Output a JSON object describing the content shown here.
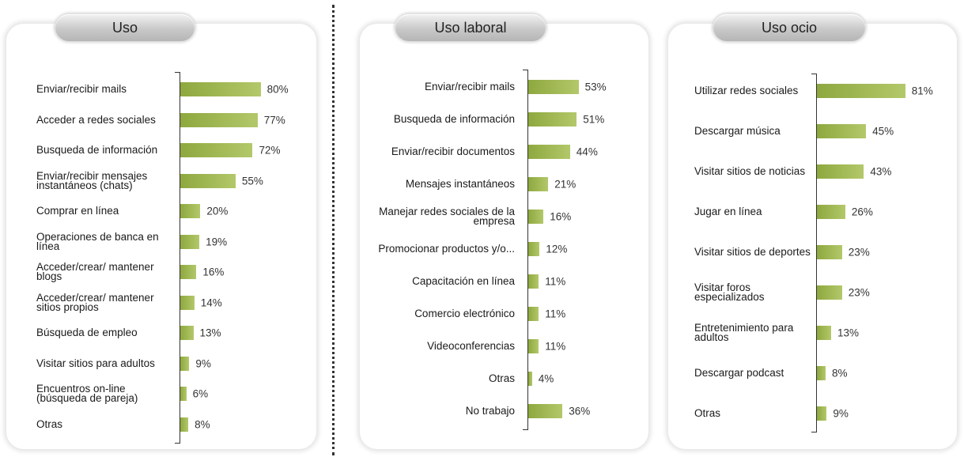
{
  "chart_data": [
    {
      "type": "bar",
      "orientation": "horizontal",
      "title": "Uso",
      "color": "#8ea83f",
      "categories": [
        "Enviar/recibir mails",
        "Acceder a redes sociales",
        "Busqueda de información",
        "Enviar/recibir mensajes instantáneos (chats)",
        "Comprar en línea",
        "Operaciones de banca en línea",
        "Acceder/crear/ mantener blogs",
        "Acceder/crear/ mantener sitios propios",
        "Búsqueda de empleo",
        "Visitar sitios para adultos",
        "Encuentros on-line (búsqueda de pareja)",
        "Otras"
      ],
      "values": [
        80,
        77,
        72,
        55,
        20,
        19,
        16,
        14,
        13,
        9,
        6,
        8
      ],
      "value_labels": [
        "80%",
        "77%",
        "72%",
        "55%",
        "20%",
        "19%",
        "16%",
        "14%",
        "13%",
        "9%",
        "6%",
        "8%"
      ]
    },
    {
      "type": "bar",
      "orientation": "horizontal",
      "title": "Uso laboral",
      "color": "#8ea83f",
      "categories": [
        "Enviar/recibir mails",
        "Busqueda de información",
        "Enviar/recibir documentos",
        "Mensajes instantáneos",
        "Manejar redes sociales de la empresa",
        "Promocionar productos y/o...",
        "Capacitación en línea",
        "Comercio electrónico",
        "Videoconferencias",
        "Otras",
        "No trabajo"
      ],
      "values": [
        53,
        51,
        44,
        21,
        16,
        12,
        11,
        11,
        11,
        4,
        36
      ],
      "value_labels": [
        "53%",
        "51%",
        "44%",
        "21%",
        "16%",
        "12%",
        "11%",
        "11%",
        "11%",
        "4%",
        "36%"
      ]
    },
    {
      "type": "bar",
      "orientation": "horizontal",
      "title": "Uso ocio",
      "color": "#8ea83f",
      "categories": [
        "Utilizar redes sociales",
        "Descargar música",
        "Visitar sitios de noticias",
        "Jugar en línea",
        "Visitar sitios de deportes",
        "Visitar foros especializados",
        "Entretenimiento para adultos",
        "Descargar podcast",
        "Otras"
      ],
      "values": [
        81,
        45,
        43,
        26,
        23,
        23,
        13,
        8,
        9
      ],
      "value_labels": [
        "81%",
        "45%",
        "43%",
        "26%",
        "23%",
        "23%",
        "13%",
        "8%",
        "9%"
      ]
    }
  ]
}
